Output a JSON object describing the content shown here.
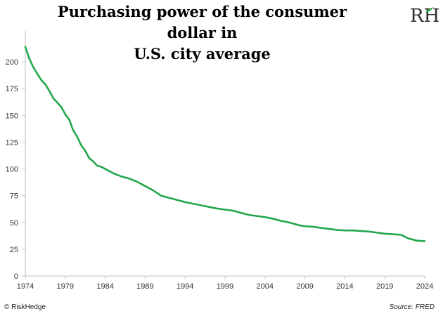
{
  "brand": {
    "logo_text": "RH",
    "logo_color": "#2e2e2e",
    "logo_accent_color": "#2db24a"
  },
  "footer": {
    "copyright": "© RiskHedge",
    "source": "Source: FRED"
  },
  "chart_data": {
    "type": "line",
    "title": "Purchasing power of the consumer dollar in U.S. city average",
    "title_lines": [
      "Purchasing power of the consumer dollar in",
      "U.S. city average"
    ],
    "xlabel": "",
    "ylabel": "",
    "xlim": [
      1974,
      2024
    ],
    "ylim": [
      0,
      225
    ],
    "x_ticks": [
      "1974",
      "1979",
      "1984",
      "1989",
      "1994",
      "1999",
      "2004",
      "2009",
      "2014",
      "2019",
      "2024"
    ],
    "y_ticks": [
      "0",
      "25",
      "50",
      "75",
      "100",
      "125",
      "150",
      "175",
      "200"
    ],
    "grid": false,
    "legend": "none",
    "line_color": "#22a84a",
    "series": [
      {
        "x": [
          1974,
          1974.5,
          1975,
          1975.5,
          1976,
          1976.5,
          1977,
          1977.5,
          1978,
          1978.5,
          1979,
          1979.5,
          1980,
          1980.5,
          1981,
          1981.5,
          1982,
          1982.5,
          1983,
          1983.5,
          1984,
          1985,
          1986,
          1986.5,
          1987,
          1988,
          1989,
          1990,
          1991,
          1992,
          1993,
          1994,
          1995,
          1996,
          1997,
          1998,
          1999,
          2000,
          2001,
          2002,
          2003,
          2004,
          2005,
          2006,
          2007,
          2008,
          2008.5,
          2009,
          2010,
          2011,
          2012,
          2013,
          2014,
          2015,
          2016,
          2017,
          2018,
          2019,
          2020,
          2021,
          2022,
          2023,
          2024
        ],
        "y": [
          214,
          203,
          195,
          189,
          183,
          179,
          173,
          166,
          162,
          158,
          151,
          146,
          136,
          130,
          122,
          117,
          110,
          107,
          103,
          102,
          100,
          96,
          93,
          92,
          91,
          88,
          84,
          80,
          75,
          73,
          71,
          69,
          67.5,
          66,
          64.5,
          63,
          62,
          61,
          59,
          57,
          56,
          55,
          53.5,
          51.5,
          50,
          48,
          47,
          46.5,
          46,
          45,
          44,
          43,
          42.5,
          42.5,
          42,
          41.5,
          40.5,
          39.5,
          39,
          38.5,
          35,
          33,
          32.5
        ]
      }
    ]
  }
}
